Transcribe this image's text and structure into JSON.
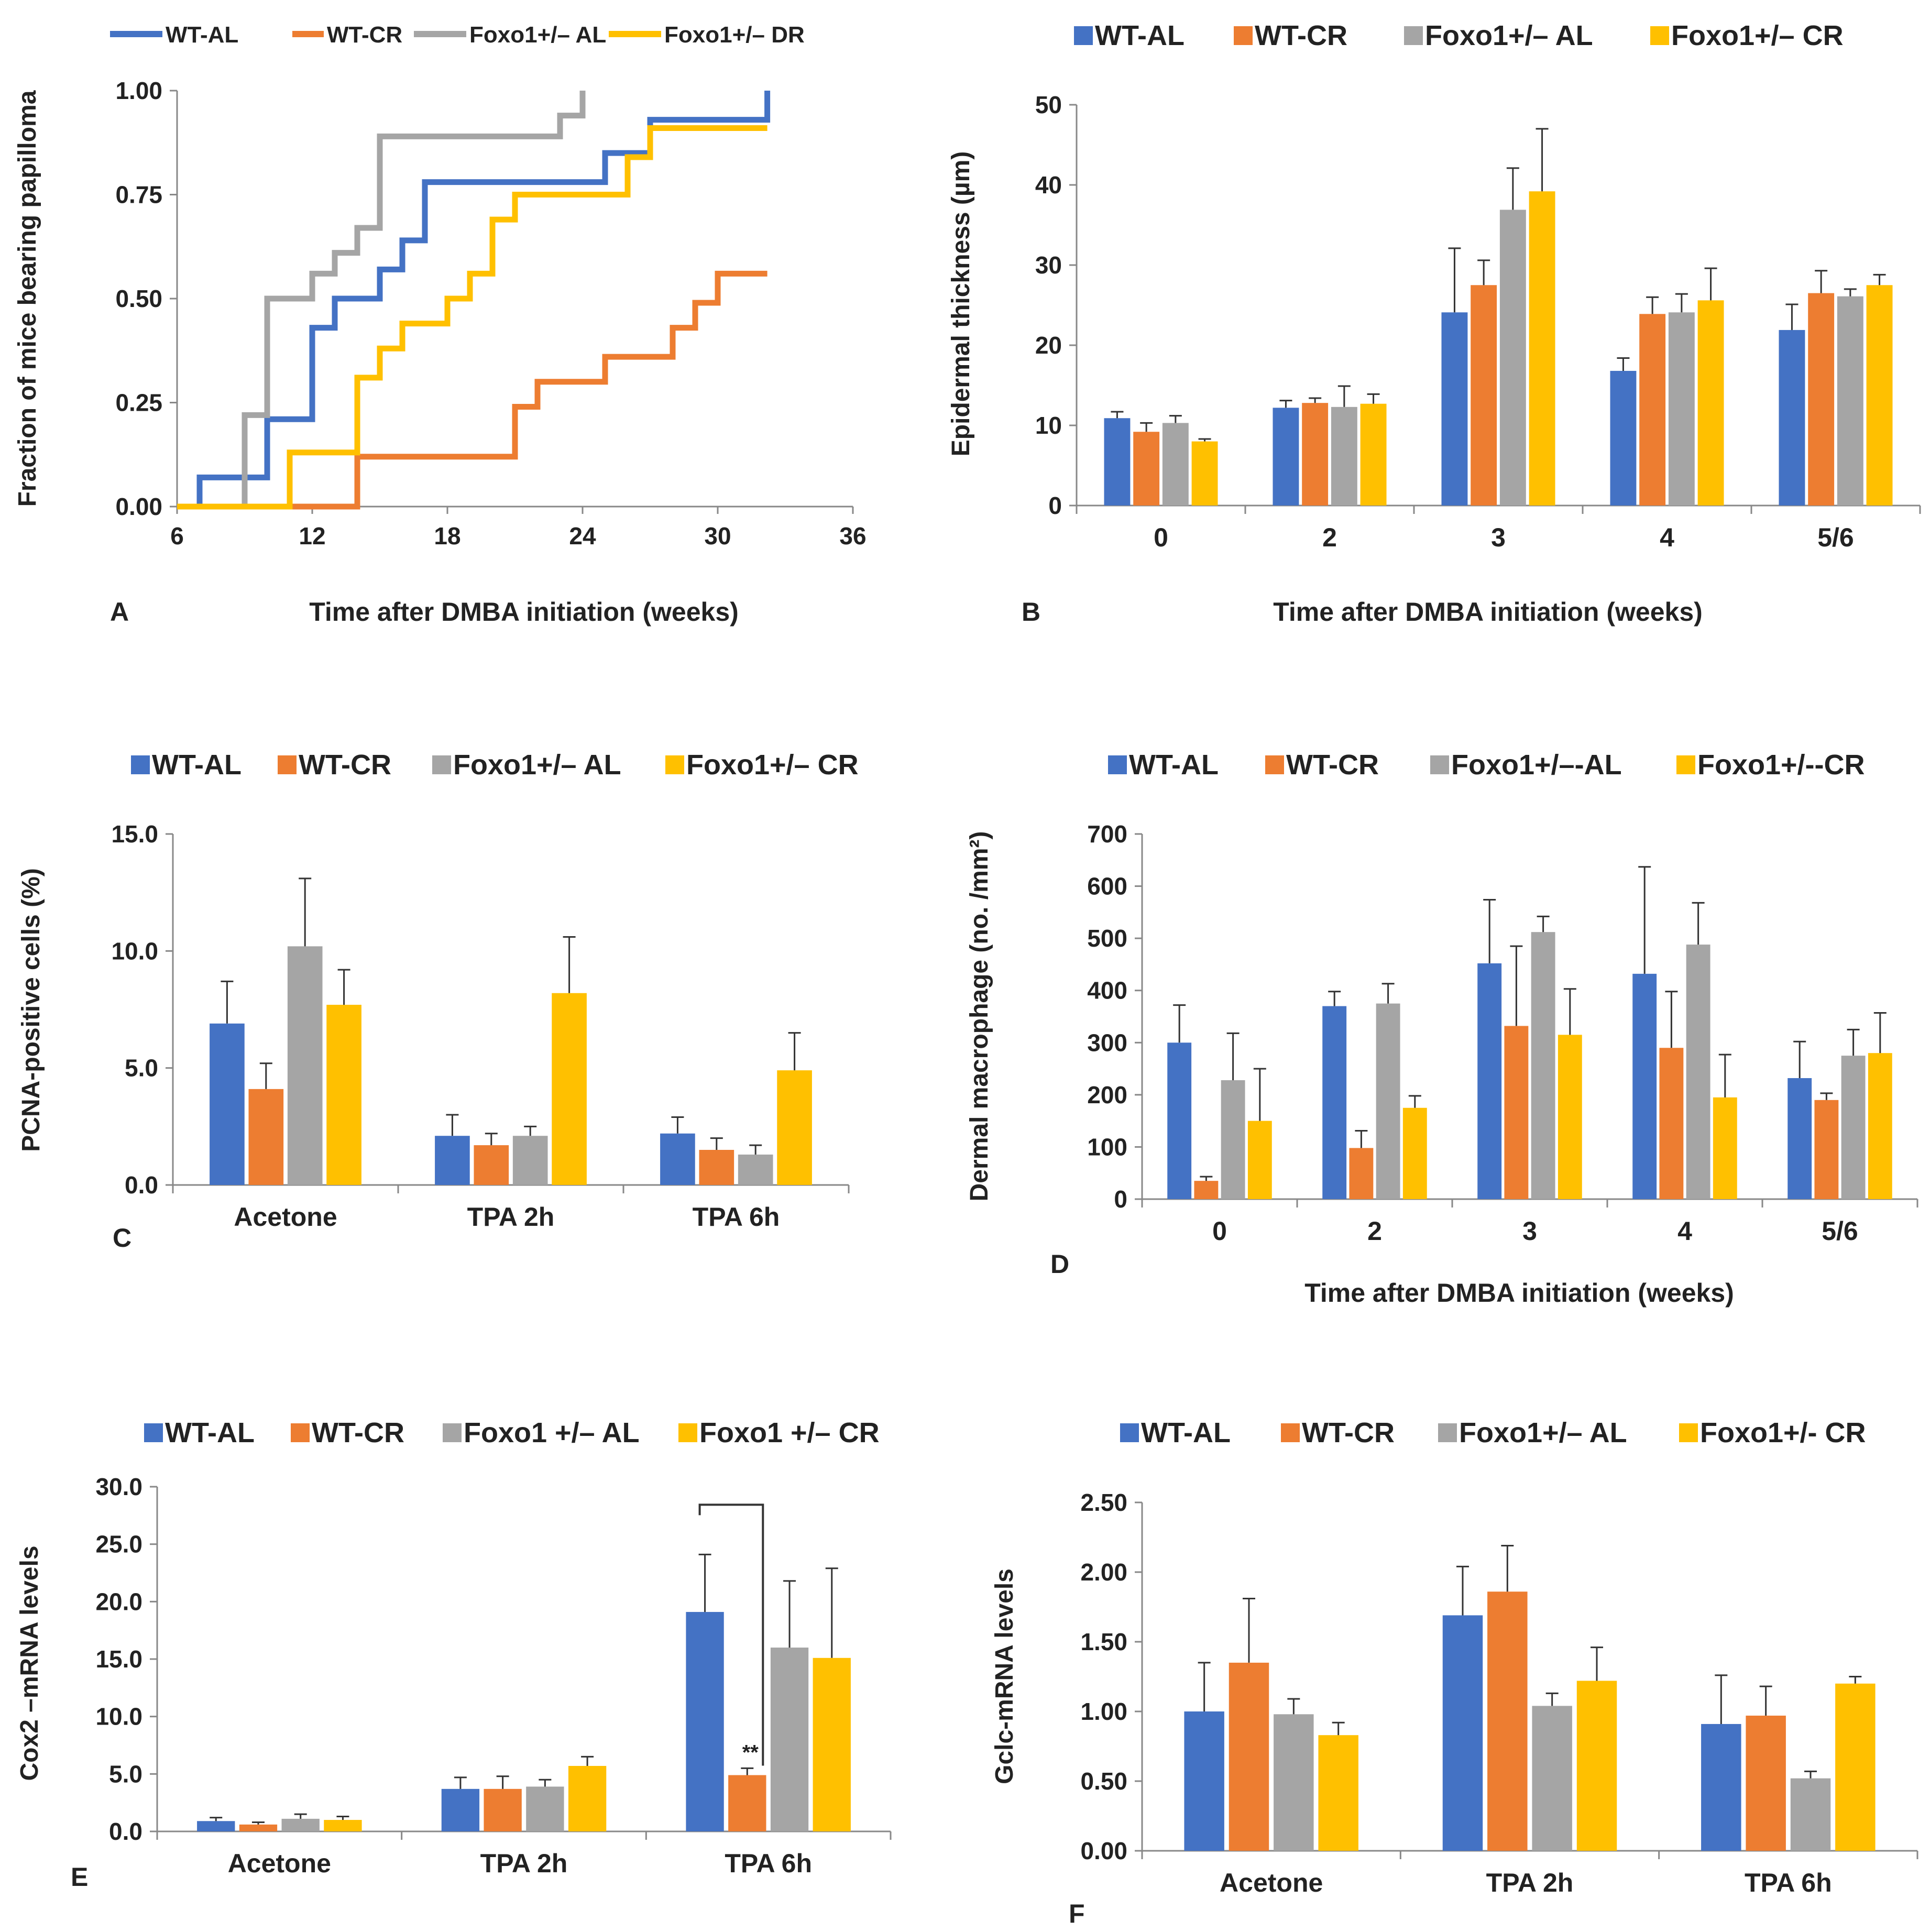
{
  "colors": {
    "WT-AL": "#4472C4",
    "WT-CR": "#ED7D31",
    "FoxoAL": "#A5A5A5",
    "FoxoCR": "#FFC000",
    "axis": "#888888",
    "text": "#222222"
  },
  "chart_data": [
    {
      "type": "line",
      "panel_label": "A",
      "xlabel": "Time after DMBA initiation (weeks)",
      "ylabel": "Fraction of mice bearing papilloma",
      "xlim": [
        6,
        36
      ],
      "ylim": [
        0,
        1
      ],
      "xticks": [
        6,
        12,
        18,
        24,
        30,
        36
      ],
      "yticks": [
        0,
        0.25,
        0.5,
        0.75,
        1
      ],
      "ytick_labels": [
        "0.00",
        "0.25",
        "0.50",
        "0.75",
        "1.00"
      ],
      "legend": [
        "WT-AL",
        "WT-CR",
        "Foxo1+/– AL",
        "Foxo1+/– DR"
      ],
      "series": [
        {
          "name": "WT-AL",
          "x": [
            6,
            7,
            10,
            12,
            13,
            15,
            16,
            17,
            25,
            27,
            32.2,
            32.2
          ],
          "y": [
            0,
            0.07,
            0.21,
            0.43,
            0.5,
            0.57,
            0.64,
            0.78,
            0.85,
            0.93,
            0.93,
            1.0
          ]
        },
        {
          "name": "WT-CR",
          "x": [
            6,
            14,
            21,
            22,
            25,
            28,
            29,
            30,
            32.2
          ],
          "y": [
            0,
            0.12,
            0.24,
            0.3,
            0.36,
            0.43,
            0.49,
            0.56,
            0.56
          ]
        },
        {
          "name": "Foxo1+/– AL",
          "x": [
            6,
            9,
            10,
            12,
            13,
            14,
            15,
            23,
            24,
            24
          ],
          "y": [
            0,
            0.22,
            0.5,
            0.56,
            0.61,
            0.67,
            0.89,
            0.94,
            0.94,
            1.0
          ]
        },
        {
          "name": "Foxo1+/– DR",
          "x": [
            6,
            11,
            14,
            15,
            16,
            18,
            19,
            20,
            21,
            22,
            26,
            27,
            32.2
          ],
          "y": [
            0,
            0.13,
            0.31,
            0.38,
            0.44,
            0.5,
            0.56,
            0.69,
            0.75,
            0.75,
            0.84,
            0.91,
            0.91
          ]
        }
      ]
    },
    {
      "type": "bar",
      "panel_label": "B",
      "xlabel": "Time after DMBA initiation (weeks)",
      "ylabel": "Epidermal thickness (µm)",
      "ylim": [
        0,
        50
      ],
      "yticks": [
        0,
        10,
        20,
        30,
        40,
        50
      ],
      "ytick_labels": [
        "0",
        "10",
        "20",
        "30",
        "40",
        "50"
      ],
      "categories": [
        "0",
        "2",
        "3",
        "4",
        "5/6"
      ],
      "legend": [
        "WT-AL",
        "WT-CR",
        "Foxo1+/– AL",
        "Foxo1+/– CR"
      ],
      "series": [
        {
          "name": "WT-AL",
          "values": [
            10.9,
            12.2,
            24.1,
            16.8,
            21.9
          ],
          "errors": [
            0.8,
            0.9,
            8.0,
            1.6,
            3.2
          ]
        },
        {
          "name": "WT-CR",
          "values": [
            9.2,
            12.8,
            27.5,
            23.9,
            26.5
          ],
          "errors": [
            1.1,
            0.6,
            3.1,
            2.1,
            2.8
          ]
        },
        {
          "name": "Foxo1+/– AL",
          "values": [
            10.3,
            12.3,
            36.9,
            24.1,
            26.1
          ],
          "errors": [
            0.9,
            2.6,
            5.2,
            2.3,
            0.9
          ]
        },
        {
          "name": "Foxo1+/– CR",
          "values": [
            8.0,
            12.7,
            39.2,
            25.6,
            27.5
          ],
          "errors": [
            0.3,
            1.2,
            7.8,
            4.0,
            1.3
          ]
        }
      ]
    },
    {
      "type": "bar",
      "panel_label": "C",
      "xlabel": "",
      "ylabel": "PCNA-positive cells (%)",
      "ylim": [
        0,
        15
      ],
      "yticks": [
        0,
        5,
        10,
        15
      ],
      "ytick_labels": [
        "0.0",
        "5.0",
        "10.0",
        "15.0"
      ],
      "categories": [
        "Acetone",
        "TPA 2h",
        "TPA 6h"
      ],
      "legend": [
        "WT-AL",
        "WT-CR",
        "Foxo1+/– AL",
        "Foxo1+/– CR"
      ],
      "series": [
        {
          "name": "WT-AL",
          "values": [
            6.9,
            2.1,
            2.2
          ],
          "errors": [
            1.8,
            0.9,
            0.7
          ]
        },
        {
          "name": "WT-CR",
          "values": [
            4.1,
            1.7,
            1.5
          ],
          "errors": [
            1.1,
            0.5,
            0.5
          ]
        },
        {
          "name": "Foxo1+/– AL",
          "values": [
            10.2,
            2.1,
            1.3
          ],
          "errors": [
            2.9,
            0.4,
            0.4
          ]
        },
        {
          "name": "Foxo1+/– CR",
          "values": [
            7.7,
            8.2,
            4.9
          ],
          "errors": [
            1.5,
            2.4,
            1.6
          ]
        }
      ]
    },
    {
      "type": "bar",
      "panel_label": "D",
      "xlabel": "Time after DMBA initiation (weeks)",
      "ylabel": "Dermal macrophage (no. /mm²)",
      "ylim": [
        0,
        700
      ],
      "yticks": [
        0,
        100,
        200,
        300,
        400,
        500,
        600,
        700
      ],
      "ytick_labels": [
        "0",
        "100",
        "200",
        "300",
        "400",
        "500",
        "600",
        "700"
      ],
      "categories": [
        "0",
        "2",
        "3",
        "4",
        "5/6"
      ],
      "legend": [
        "WT-AL",
        "WT-CR",
        "Foxo1+/–-AL",
        "Foxo1+/--CR"
      ],
      "series": [
        {
          "name": "WT-AL",
          "values": [
            300,
            370,
            452,
            432,
            232
          ],
          "errors": [
            72,
            28,
            122,
            205,
            70
          ]
        },
        {
          "name": "WT-CR",
          "values": [
            35,
            98,
            332,
            290,
            190
          ],
          "errors": [
            8,
            33,
            153,
            108,
            13
          ]
        },
        {
          "name": "Foxo1+/–-AL",
          "values": [
            228,
            375,
            512,
            488,
            275
          ],
          "errors": [
            90,
            38,
            30,
            80,
            50
          ]
        },
        {
          "name": "Foxo1+/--CR",
          "values": [
            150,
            175,
            315,
            195,
            280
          ],
          "errors": [
            100,
            23,
            88,
            82,
            77
          ]
        }
      ]
    },
    {
      "type": "bar",
      "panel_label": "E",
      "xlabel": "",
      "ylabel": "Cox2 –mRNA levels",
      "ylim": [
        0,
        30
      ],
      "yticks": [
        0,
        5,
        10,
        15,
        20,
        25,
        30
      ],
      "ytick_labels": [
        "0.0",
        "5.0",
        "10.0",
        "15.0",
        "20.0",
        "25.0",
        "30.0"
      ],
      "categories": [
        "Acetone",
        "TPA 2h",
        "TPA 6h"
      ],
      "legend": [
        "WT-AL",
        "WT-CR",
        "Foxo1 +/– AL",
        "Foxo1 +/– CR"
      ],
      "significance": {
        "category": "TPA 6h",
        "between": [
          "WT-AL",
          "WT-CR"
        ],
        "label": "**"
      },
      "series": [
        {
          "name": "WT-AL",
          "values": [
            0.9,
            3.7,
            19.1
          ],
          "errors": [
            0.3,
            1.0,
            5.0
          ]
        },
        {
          "name": "WT-CR",
          "values": [
            0.6,
            3.7,
            4.9
          ],
          "errors": [
            0.2,
            1.1,
            0.6
          ]
        },
        {
          "name": "Foxo1 +/– AL",
          "values": [
            1.1,
            3.9,
            16.0
          ],
          "errors": [
            0.4,
            0.6,
            5.8
          ]
        },
        {
          "name": "Foxo1 +/– CR",
          "values": [
            1.0,
            5.7,
            15.1
          ],
          "errors": [
            0.3,
            0.8,
            7.8
          ]
        }
      ]
    },
    {
      "type": "bar",
      "panel_label": "F",
      "xlabel": "",
      "ylabel": "Gclc-mRNA levels",
      "ylim": [
        0,
        2.5
      ],
      "yticks": [
        0,
        0.5,
        1,
        1.5,
        2,
        2.5
      ],
      "ytick_labels": [
        "0.00",
        "0.50",
        "1.00",
        "1.50",
        "2.00",
        "2.50"
      ],
      "categories": [
        "Acetone",
        "TPA 2h",
        "TPA 6h"
      ],
      "legend": [
        "WT-AL",
        "WT-CR",
        "Foxo1+/– AL",
        "Foxo1+/- CR"
      ],
      "series": [
        {
          "name": "WT-AL",
          "values": [
            1.0,
            1.69,
            0.91
          ],
          "errors": [
            0.35,
            0.35,
            0.35
          ]
        },
        {
          "name": "WT-CR",
          "values": [
            1.35,
            1.86,
            0.97
          ],
          "errors": [
            0.46,
            0.33,
            0.21
          ]
        },
        {
          "name": "Foxo1+/– AL",
          "values": [
            0.98,
            1.04,
            0.52
          ],
          "errors": [
            0.11,
            0.09,
            0.05
          ]
        },
        {
          "name": "Foxo1+/- CR",
          "values": [
            0.83,
            1.22,
            1.2
          ],
          "errors": [
            0.09,
            0.24,
            0.05
          ]
        }
      ]
    }
  ]
}
